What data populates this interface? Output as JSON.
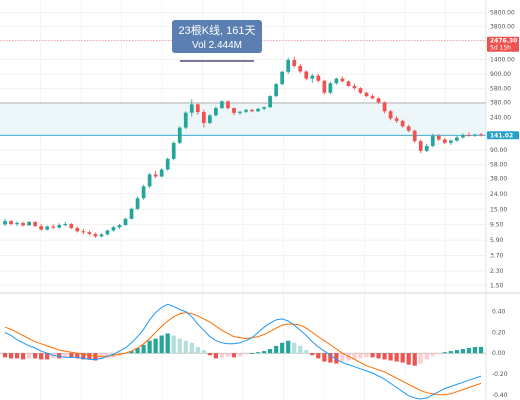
{
  "chart_data": [
    {
      "type": "candlestick",
      "scale": "log",
      "ylim": [
        1.3,
        8000
      ],
      "y_ticks": [
        "5800.00",
        "3800.00",
        "2476.30",
        "1400.00",
        "900.00",
        "580.00",
        "380.00",
        "240.00",
        "141.02",
        "90.00",
        "58.00",
        "38.00",
        "24.00",
        "15.00",
        "9.50",
        "5.90",
        "3.70",
        "2.30",
        "1.50"
      ],
      "y_tick_values": [
        5800,
        3800,
        2476.3,
        1400,
        900,
        580,
        380,
        240,
        141.02,
        90,
        58,
        38,
        24,
        15,
        9.5,
        5.9,
        3.7,
        2.3,
        1.5
      ],
      "highlighted_labels": {
        "top_price": "2476.30",
        "top_countdown": "5d 15h",
        "last_price": "141.02"
      },
      "horizontal_levels": [
        375,
        141.02
      ],
      "range_box": {
        "low": 141.02,
        "high": 375
      },
      "measure_tooltip": {
        "line1": "23根K线, 161天",
        "line2": "Vol 2.444M"
      },
      "candles": [
        [
          9.5,
          11.2,
          9.0,
          10.5
        ],
        [
          10.5,
          10.8,
          9.2,
          9.6
        ],
        [
          9.6,
          10.4,
          9.0,
          9.9
        ],
        [
          9.9,
          10.3,
          8.9,
          9.2
        ],
        [
          9.2,
          10.6,
          9.1,
          10.2
        ],
        [
          10.2,
          10.5,
          8.8,
          9.0
        ],
        [
          9.0,
          9.6,
          7.8,
          8.1
        ],
        [
          8.1,
          9.2,
          7.9,
          8.9
        ],
        [
          8.9,
          9.5,
          8.2,
          8.6
        ],
        [
          8.6,
          9.8,
          8.4,
          9.3
        ],
        [
          9.3,
          10.2,
          8.9,
          9.6
        ],
        [
          9.6,
          9.9,
          8.2,
          8.5
        ],
        [
          8.5,
          8.9,
          7.4,
          7.7
        ],
        [
          7.7,
          8.3,
          7.1,
          7.5
        ],
        [
          7.5,
          7.9,
          6.8,
          7.1
        ],
        [
          7.1,
          7.4,
          6.3,
          6.6
        ],
        [
          6.6,
          7.3,
          6.4,
          7.0
        ],
        [
          7.0,
          8.1,
          6.8,
          7.9
        ],
        [
          7.9,
          9.0,
          7.6,
          8.7
        ],
        [
          8.7,
          9.6,
          8.3,
          9.3
        ],
        [
          9.3,
          11.6,
          9.1,
          11.2
        ],
        [
          11.2,
          15.8,
          11.0,
          15.2
        ],
        [
          15.2,
          22.0,
          14.6,
          21.0
        ],
        [
          21.0,
          31.5,
          20.2,
          30.0
        ],
        [
          30.0,
          45.0,
          28.5,
          43.0
        ],
        [
          43.0,
          48.0,
          38.5,
          40.5
        ],
        [
          40.5,
          52.0,
          39.5,
          50.0
        ],
        [
          50.0,
          72.0,
          48.5,
          69.0
        ],
        [
          69.0,
          118.0,
          66.0,
          112.0
        ],
        [
          112.0,
          185.0,
          108.0,
          178.0
        ],
        [
          178.0,
          292.0,
          170.0,
          280.0
        ],
        [
          280.0,
          420.0,
          248.0,
          360.0
        ],
        [
          360.0,
          370.0,
          262.0,
          285.0
        ],
        [
          285.0,
          308.0,
          178.0,
          205.0
        ],
        [
          205.0,
          268.0,
          198.0,
          258.0
        ],
        [
          258.0,
          338.0,
          252.0,
          322.0
        ],
        [
          322.0,
          408.0,
          312.0,
          395.0
        ],
        [
          395.0,
          402.0,
          308.0,
          322.0
        ],
        [
          322.0,
          328.0,
          258.0,
          278.0
        ],
        [
          278.0,
          296.0,
          262.0,
          288.0
        ],
        [
          288.0,
          315.0,
          276.0,
          305.0
        ],
        [
          305.0,
          312.0,
          284.0,
          292.0
        ],
        [
          292.0,
          322.0,
          286.0,
          315.0
        ],
        [
          315.0,
          338.0,
          302.0,
          330.0
        ],
        [
          330.0,
          475.0,
          322.0,
          462.0
        ],
        [
          462.0,
          690.0,
          448.0,
          665.0
        ],
        [
          665.0,
          995.0,
          640.0,
          965.0
        ],
        [
          965.0,
          1480.0,
          905.0,
          1380.0
        ],
        [
          1380.0,
          1530.0,
          1080.0,
          1150.0
        ],
        [
          1150.0,
          1220.0,
          925.0,
          975.0
        ],
        [
          975.0,
          1005.0,
          745.0,
          785.0
        ],
        [
          785.0,
          905.0,
          692.0,
          858.0
        ],
        [
          858.0,
          905.0,
          700.0,
          735.0
        ],
        [
          735.0,
          755.0,
          485.0,
          512.0
        ],
        [
          512.0,
          712.0,
          492.0,
          682.0
        ],
        [
          682.0,
          805.0,
          655.0,
          785.0
        ],
        [
          785.0,
          835.0,
          702.0,
          722.0
        ],
        [
          722.0,
          742.0,
          612.0,
          628.0
        ],
        [
          628.0,
          675.0,
          562.0,
          588.0
        ],
        [
          588.0,
          605.0,
          492.0,
          512.0
        ],
        [
          512.0,
          528.0,
          448.0,
          462.0
        ],
        [
          462.0,
          488.0,
          418.0,
          432.0
        ],
        [
          432.0,
          445.0,
          368.0,
          382.0
        ],
        [
          382.0,
          395.0,
          275.0,
          292.0
        ],
        [
          292.0,
          305.0,
          222.0,
          235.0
        ],
        [
          235.0,
          252.0,
          205.0,
          218.0
        ],
        [
          218.0,
          226.0,
          178.0,
          185.0
        ],
        [
          185.0,
          194.0,
          156.0,
          162.0
        ],
        [
          162.0,
          168.0,
          112.0,
          118.0
        ],
        [
          118.0,
          124.0,
          82.0,
          88.0
        ],
        [
          88.0,
          108.0,
          85.0,
          102.0
        ],
        [
          102.0,
          148.0,
          98.0,
          138.0
        ],
        [
          138.0,
          146.0,
          118.0,
          124.0
        ],
        [
          124.0,
          130.0,
          108.0,
          112.0
        ],
        [
          112.0,
          125.0,
          106.0,
          120.0
        ],
        [
          120.0,
          138.0,
          116.0,
          132.0
        ],
        [
          132.0,
          150.0,
          128.0,
          142.0
        ],
        [
          142.0,
          155.0,
          136.0,
          140.0
        ],
        [
          140.0,
          148.0,
          134.0,
          145.0
        ],
        [
          145.0,
          152.0,
          136.0,
          141.02
        ]
      ],
      "macd": {
        "zero_line": 0,
        "y_ticks": [
          "0.40",
          "0.20",
          "0.00",
          "-0.20",
          "-0.40"
        ],
        "y_tick_values": [
          0.4,
          0.2,
          0,
          -0.2,
          -0.4
        ],
        "ylim": [
          -0.45,
          0.55
        ],
        "histogram": [
          -0.04,
          -0.05,
          -0.05,
          -0.06,
          -0.05,
          -0.05,
          -0.06,
          -0.06,
          -0.05,
          -0.05,
          -0.04,
          -0.04,
          -0.05,
          -0.06,
          -0.06,
          -0.07,
          -0.06,
          -0.05,
          -0.04,
          -0.03,
          -0.01,
          0.02,
          0.05,
          0.08,
          0.12,
          0.14,
          0.17,
          0.19,
          0.17,
          0.14,
          0.12,
          0.1,
          0.06,
          0.03,
          -0.02,
          -0.05,
          -0.04,
          -0.03,
          -0.04,
          -0.03,
          -0.01,
          0.0,
          0.01,
          0.02,
          0.04,
          0.07,
          0.1,
          0.12,
          0.1,
          0.07,
          0.03,
          -0.02,
          -0.05,
          -0.08,
          -0.09,
          -0.1,
          -0.08,
          -0.07,
          -0.06,
          -0.05,
          -0.04,
          -0.04,
          -0.05,
          -0.06,
          -0.07,
          -0.08,
          -0.09,
          -0.11,
          -0.12,
          -0.1,
          -0.06,
          -0.03,
          -0.01,
          0.01,
          0.02,
          0.03,
          0.04,
          0.05,
          0.06,
          0.06
        ],
        "macd_line": [
          0.2,
          0.17,
          0.13,
          0.1,
          0.07,
          0.05,
          0.02,
          0.0,
          -0.02,
          -0.03,
          -0.04,
          -0.04,
          -0.04,
          -0.05,
          -0.06,
          -0.06,
          -0.05,
          -0.03,
          -0.01,
          0.02,
          0.05,
          0.1,
          0.16,
          0.23,
          0.32,
          0.39,
          0.44,
          0.47,
          0.45,
          0.42,
          0.4,
          0.35,
          0.28,
          0.22,
          0.16,
          0.12,
          0.1,
          0.09,
          0.09,
          0.1,
          0.12,
          0.15,
          0.2,
          0.25,
          0.29,
          0.32,
          0.33,
          0.31,
          0.27,
          0.22,
          0.17,
          0.11,
          0.06,
          0.02,
          -0.02,
          -0.06,
          -0.09,
          -0.11,
          -0.13,
          -0.15,
          -0.17,
          -0.19,
          -0.22,
          -0.25,
          -0.29,
          -0.33,
          -0.37,
          -0.41,
          -0.43,
          -0.44,
          -0.43,
          -0.4,
          -0.37,
          -0.34,
          -0.32,
          -0.3,
          -0.28,
          -0.26,
          -0.24,
          -0.22
        ],
        "signal_line": [
          0.25,
          0.23,
          0.2,
          0.17,
          0.14,
          0.11,
          0.09,
          0.07,
          0.05,
          0.03,
          0.02,
          0.01,
          0.0,
          -0.01,
          -0.02,
          -0.03,
          -0.03,
          -0.03,
          -0.02,
          -0.01,
          0.0,
          0.02,
          0.05,
          0.09,
          0.14,
          0.2,
          0.26,
          0.31,
          0.35,
          0.38,
          0.39,
          0.38,
          0.36,
          0.33,
          0.3,
          0.26,
          0.22,
          0.19,
          0.16,
          0.15,
          0.14,
          0.15,
          0.16,
          0.18,
          0.21,
          0.24,
          0.27,
          0.28,
          0.28,
          0.27,
          0.24,
          0.2,
          0.16,
          0.12,
          0.08,
          0.04,
          0.0,
          -0.03,
          -0.06,
          -0.09,
          -0.12,
          -0.14,
          -0.16,
          -0.18,
          -0.21,
          -0.24,
          -0.27,
          -0.3,
          -0.33,
          -0.36,
          -0.38,
          -0.39,
          -0.4,
          -0.4,
          -0.39,
          -0.37,
          -0.35,
          -0.33,
          -0.31,
          -0.29
        ]
      }
    }
  ],
  "colors": {
    "up": "#26a69a",
    "down": "#ef5350",
    "macd": "#2196f3",
    "signal": "#ff6d00",
    "range_fill": "#e8f5f7",
    "cyan_line": "#26a0c8",
    "gray_line": "#9e9e9e",
    "red_dotted": "#ef5350",
    "tooltip_bg": "#5b7fb0"
  }
}
